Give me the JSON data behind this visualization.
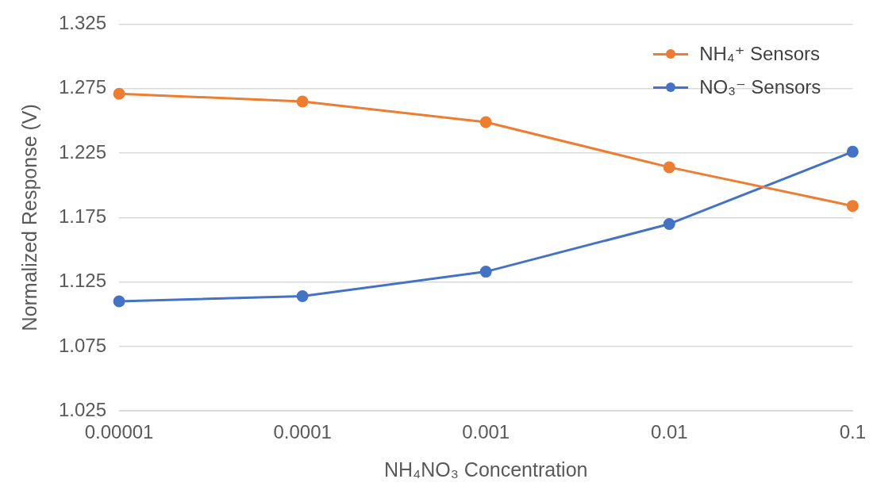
{
  "chart_data": {
    "type": "line",
    "xlabel": "NH₄NO₃ Concentration",
    "ylabel": "Normalized Response (V)",
    "categories": [
      "0.00001",
      "0.0001",
      "0.001",
      "0.01",
      "0.1"
    ],
    "series": [
      {
        "name": "NH₄⁺ Sensors",
        "color": "#ed7d31",
        "values": [
          1.271,
          1.265,
          1.249,
          1.214,
          1.184
        ]
      },
      {
        "name": "NO₃⁻ Sensors",
        "color": "#4472c4",
        "values": [
          1.11,
          1.114,
          1.133,
          1.17,
          1.226
        ]
      }
    ],
    "ylim": [
      1.025,
      1.325
    ],
    "yticks": [
      1.025,
      1.075,
      1.125,
      1.175,
      1.225,
      1.275,
      1.325
    ],
    "grid": "y",
    "legend": "top right",
    "marker": "circle",
    "line_style": "solid"
  }
}
